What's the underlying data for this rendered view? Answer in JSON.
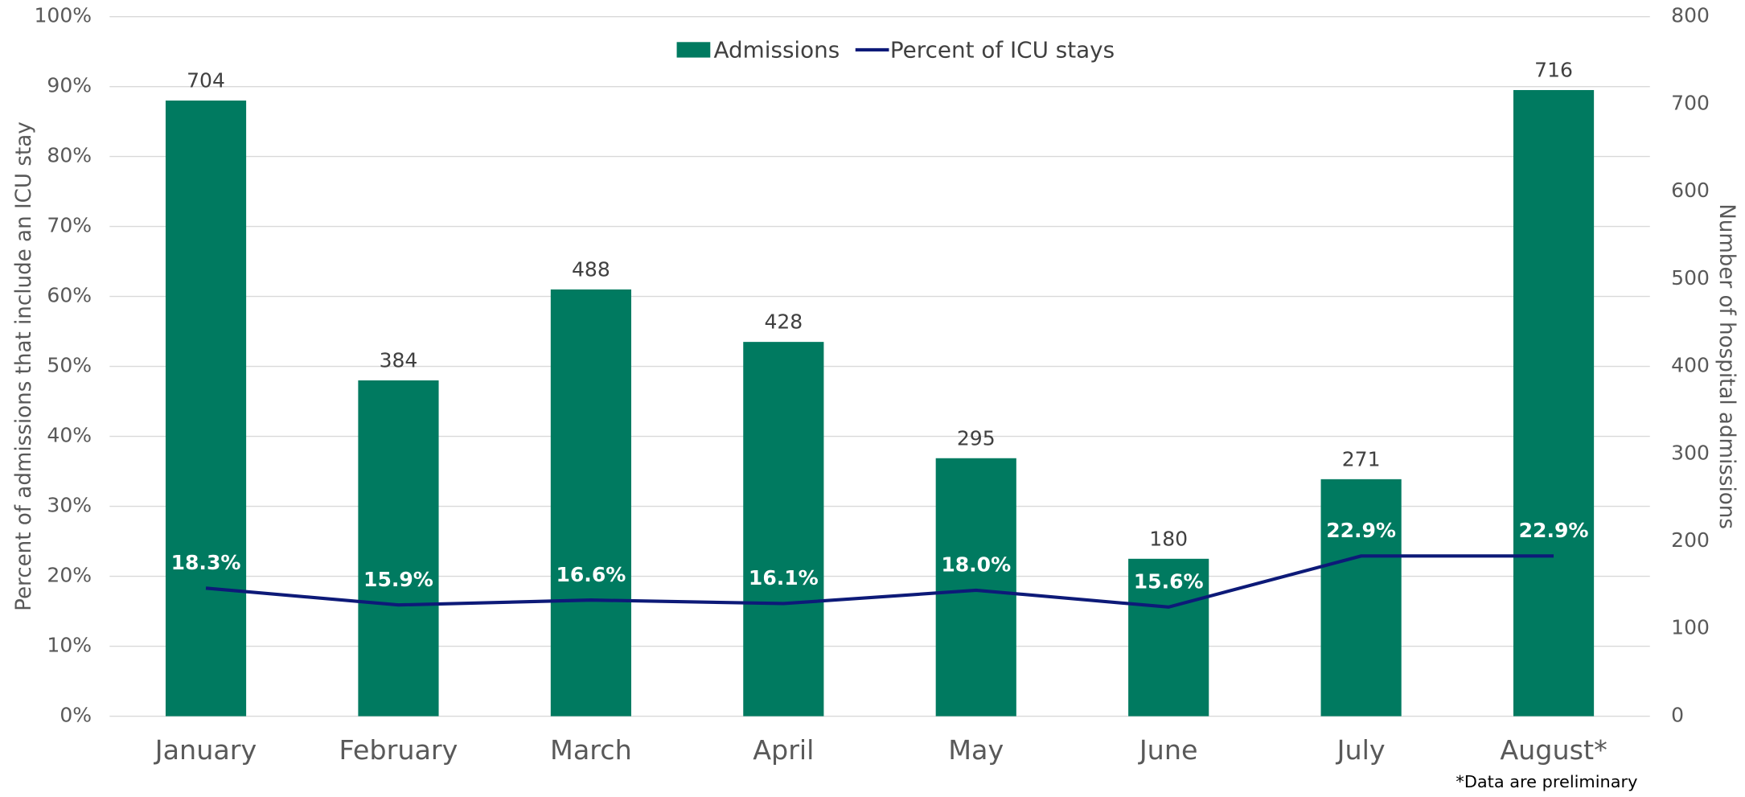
{
  "chart_data": {
    "type": "combo",
    "categories": [
      "January",
      "February",
      "March",
      "April",
      "May",
      "June",
      "July",
      "August*"
    ],
    "series": [
      {
        "name": "Admissions",
        "type": "bar",
        "axis": "y2",
        "color": "#007a60",
        "values": [
          704,
          384,
          488,
          428,
          295,
          180,
          271,
          716
        ]
      },
      {
        "name": "Percent of ICU stays",
        "type": "line",
        "axis": "y",
        "color": "#0d1a78",
        "values": [
          18.3,
          15.9,
          16.6,
          16.1,
          18.0,
          15.6,
          22.9,
          22.9
        ],
        "value_labels": [
          "18.3%",
          "15.9%",
          "16.6%",
          "16.1%",
          "18.0%",
          "15.6%",
          "22.9%",
          "22.9%"
        ]
      }
    ],
    "ylabel": "Percent of admissions that include an ICU stay",
    "y2label": "Number of hospital admissions",
    "ylim": [
      0,
      100
    ],
    "yticks": [
      {
        "value": 0,
        "label": "0%"
      },
      {
        "value": 10,
        "label": "10%"
      },
      {
        "value": 20,
        "label": "20%"
      },
      {
        "value": 30,
        "label": "30%"
      },
      {
        "value": 40,
        "label": "40%"
      },
      {
        "value": 50,
        "label": "50%"
      },
      {
        "value": 60,
        "label": "60%"
      },
      {
        "value": 70,
        "label": "70%"
      },
      {
        "value": 80,
        "label": "80%"
      },
      {
        "value": 90,
        "label": "90%"
      },
      {
        "value": 100,
        "label": "100%"
      }
    ],
    "y2lim": [
      0,
      800
    ],
    "y2ticks": [
      0,
      100,
      200,
      300,
      400,
      500,
      600,
      700,
      800
    ],
    "grid": true,
    "legend": "top",
    "annotations": [
      "*Data are preliminary"
    ]
  }
}
